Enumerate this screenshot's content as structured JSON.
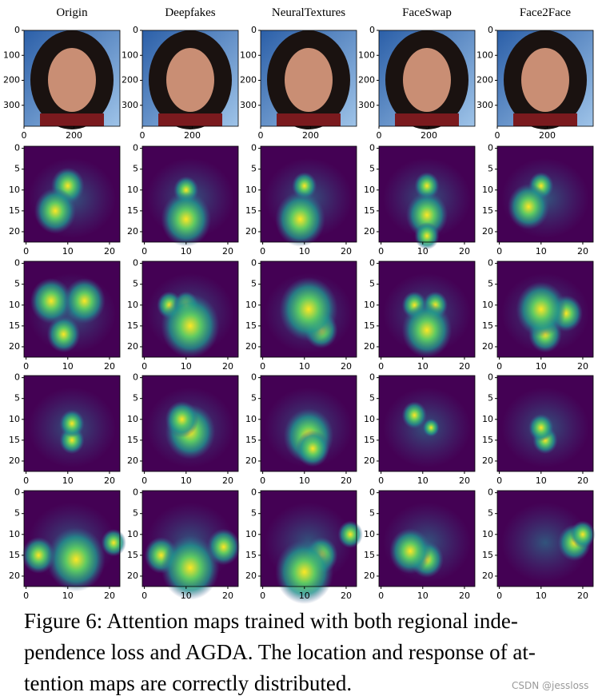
{
  "columns": [
    "Origin",
    "Deepfakes",
    "NeuralTextures",
    "FaceSwap",
    "Face2Face"
  ],
  "face_axis": {
    "xlim": [
      0,
      384
    ],
    "ylim": [
      0,
      384
    ],
    "xticks": [
      0,
      200
    ],
    "yticks": [
      0,
      100,
      200,
      300
    ]
  },
  "heat_axis": {
    "xlim": [
      -0.5,
      22.5
    ],
    "ylim": [
      -0.5,
      22.5
    ],
    "xticks": [
      0,
      10,
      20
    ],
    "yticks": [
      0,
      5,
      10,
      15,
      20
    ]
  },
  "caption": {
    "lines": [
      "Figure 6:  Attention maps trained with both regional inde-",
      "pendence loss and AGDA. The location and response of at-",
      "tention maps are correctly distributed."
    ]
  },
  "watermark": "CSDN @jessloss"
}
